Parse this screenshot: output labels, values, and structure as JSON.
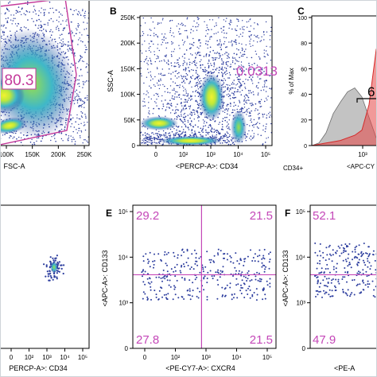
{
  "colors": {
    "gate": "#c4399a",
    "quadrant": "#c447b8",
    "dot": "#2c3d9e",
    "density_mid": "#3fb8c8",
    "density_high": "#bfe83a",
    "density_peak": "#f2f230",
    "hist_gray": "#b9b9b9",
    "hist_red": "#e64646"
  },
  "footer": {
    "label": "CD34+"
  },
  "chart_data": [
    {
      "type": "scatter",
      "panel": "A",
      "letter": "",
      "xlabel": "FSC-A",
      "ylabel": "",
      "x_ticks": [
        "100K",
        "150K",
        "200K",
        "250K"
      ],
      "y_ticks": [],
      "gate_value": "80.3",
      "density": "high"
    },
    {
      "type": "scatter",
      "panel": "B",
      "letter": "B",
      "xlabel": "<PERCP-A>: CD34",
      "ylabel": "SSC-A",
      "x_ticks": [
        "0",
        "10²",
        "10³",
        "10⁴",
        "10⁵"
      ],
      "y_ticks": [
        "0",
        "50K",
        "100K",
        "150K",
        "200K",
        "250K"
      ],
      "gate_value": "0.0313",
      "density": "high"
    },
    {
      "type": "area",
      "panel": "C",
      "letter": "C",
      "xlabel": "<APC-CY",
      "ylabel": "% of Max",
      "x_ticks": [
        "10³"
      ],
      "y_ticks": [
        "0",
        "20",
        "40",
        "60",
        "80",
        "100"
      ],
      "gate_value": "6",
      "series": [
        {
          "role": "control",
          "x": [
            0,
            0.1,
            0.2,
            0.3,
            0.4,
            0.5,
            0.6,
            0.7,
            0.8,
            0.9,
            1.0
          ],
          "values": [
            0,
            2,
            10,
            25,
            34,
            42,
            45,
            38,
            22,
            6,
            0
          ]
        },
        {
          "role": "stained",
          "x": [
            0,
            0.1,
            0.2,
            0.3,
            0.4,
            0.5,
            0.6,
            0.7,
            0.8,
            0.9,
            1.0
          ],
          "values": [
            0,
            1,
            2,
            3,
            4,
            6,
            8,
            12,
            32,
            75,
            68
          ]
        }
      ]
    },
    {
      "type": "scatter",
      "panel": "D",
      "letter": "",
      "xlabel": "PERCP-A>: CD34",
      "ylabel": "",
      "x_ticks": [
        "0",
        "10²",
        "10³",
        "10⁴",
        "10⁵"
      ],
      "y_ticks": [],
      "cluster": {
        "x": 4.0,
        "y": 3.3,
        "count": 60
      }
    },
    {
      "type": "scatter",
      "panel": "E",
      "letter": "E",
      "xlabel": "<PE-CY7-A>: CXCR4",
      "ylabel": "<APC-A>: CD133",
      "x_ticks": [
        "0",
        "10²",
        "10³",
        "10⁴",
        "10⁵"
      ],
      "y_ticks": [
        "0",
        "10³",
        "10⁴",
        "10⁵"
      ],
      "quadrant_values": {
        "upper_left": "29.2",
        "upper_right": "21.5",
        "lower_left": "27.8",
        "lower_right": "21.5"
      },
      "gate_x": 2.4,
      "gate_y": 3.3
    },
    {
      "type": "scatter",
      "panel": "F",
      "letter": "F",
      "xlabel": "<PE-A",
      "ylabel": "<APC-A>: CD133",
      "x_ticks": [],
      "y_ticks": [
        "0",
        "10³",
        "10⁴",
        "10⁵"
      ],
      "quadrant_values": {
        "upper_left": "52.1",
        "lower_left": "47.9"
      },
      "gate_y": 3.3
    }
  ]
}
